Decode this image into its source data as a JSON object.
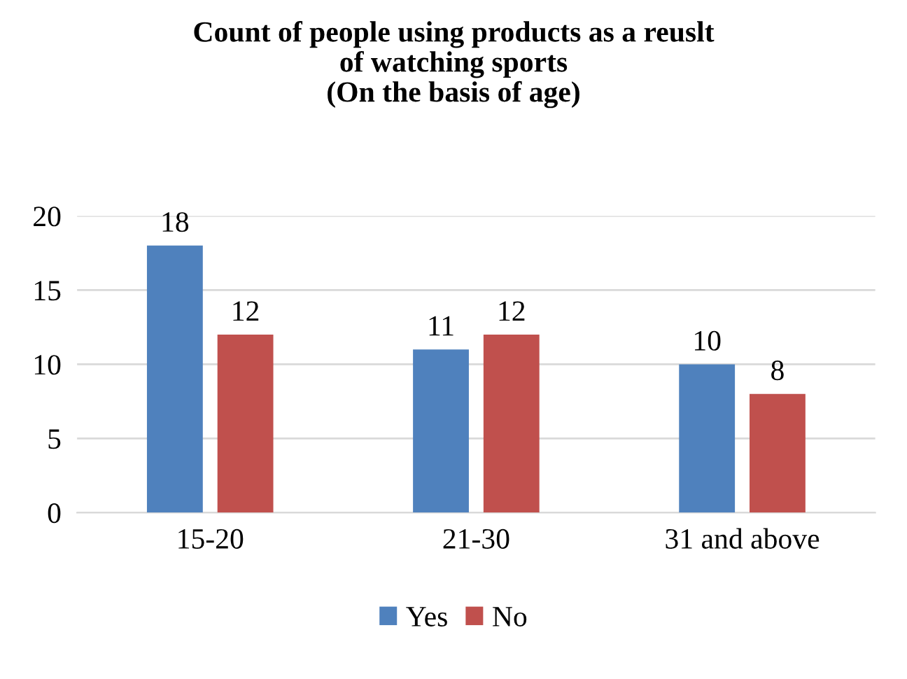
{
  "chart_data": {
    "type": "bar",
    "title": "Count of people using products as a reuslt\nof watching sports\n(On the basis of age)",
    "categories": [
      "15-20",
      "21-30",
      "31 and above"
    ],
    "series": [
      {
        "name": "Yes",
        "color": "#4f81bd",
        "values": [
          18,
          11,
          10
        ]
      },
      {
        "name": "No",
        "color": "#c0504d",
        "values": [
          12,
          12,
          8
        ]
      }
    ],
    "ylim": [
      0,
      20
    ],
    "yticks": [
      0,
      5,
      10,
      15,
      20
    ],
    "grid": "y",
    "legend": "bottom",
    "data_labels": true
  }
}
